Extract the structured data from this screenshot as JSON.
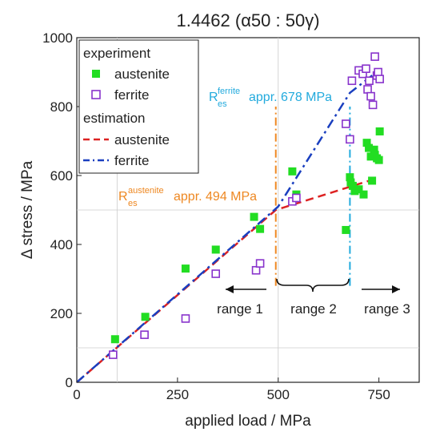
{
  "chart_data": {
    "type": "scatter",
    "title": "1.4462 (α50 : 50γ)",
    "xlabel": "applied load / MPa",
    "ylabel": "Δ stress / MPa",
    "xlim": [
      0,
      850
    ],
    "ylim": [
      0,
      1000
    ],
    "x_ticks": [
      "0",
      "250",
      "500",
      "750"
    ],
    "x_tick_values": [
      0,
      250,
      500,
      750
    ],
    "y_ticks": [
      "0",
      "200",
      "400",
      "600",
      "800",
      "1000"
    ],
    "y_tick_values": [
      0,
      200,
      400,
      600,
      800,
      1000
    ],
    "grid_x": [
      100,
      500
    ],
    "grid_y": [
      100,
      500
    ],
    "legend": {
      "position": "top-left",
      "group1": "experiment",
      "group2": "estimation",
      "entries": [
        "austenite",
        "ferrite",
        "austenite",
        "ferrite"
      ]
    },
    "series": [
      {
        "name": "austenite",
        "kind": "experiment",
        "marker": "filled-square",
        "color": "#22dd22",
        "x": [
          95,
          170,
          270,
          345,
          440,
          455,
          535,
          545,
          668,
          678,
          680,
          685,
          690,
          700,
          712,
          720,
          725,
          730,
          733,
          738,
          740,
          745,
          750,
          752
        ],
        "y": [
          125,
          190,
          330,
          385,
          480,
          445,
          612,
          545,
          442,
          595,
          580,
          570,
          555,
          560,
          545,
          695,
          680,
          655,
          585,
          675,
          660,
          650,
          645,
          728
        ]
      },
      {
        "name": "ferrite",
        "kind": "experiment",
        "marker": "open-square",
        "color": "#8833cc",
        "x": [
          90,
          168,
          270,
          345,
          445,
          455,
          535,
          545,
          668,
          678,
          683,
          700,
          710,
          718,
          722,
          726,
          730,
          735,
          740,
          745,
          748,
          752
        ],
        "y": [
          80,
          138,
          185,
          315,
          325,
          345,
          525,
          535,
          750,
          705,
          875,
          905,
          895,
          910,
          850,
          875,
          830,
          805,
          945,
          890,
          900,
          880
        ]
      },
      {
        "name": "austenite",
        "kind": "estimation",
        "line": "dashed",
        "color": "#dd2222",
        "x": [
          0,
          494,
          740
        ],
        "y": [
          0,
          500,
          590
        ]
      },
      {
        "name": "ferrite",
        "kind": "estimation",
        "line": "dash-dot",
        "color": "#1a3fbf",
        "x": [
          0,
          500,
          678,
          755
        ],
        "y": [
          0,
          510,
          840,
          910
        ]
      }
    ],
    "vertical_lines": [
      {
        "x": 494,
        "y_range": [
          280,
          800
        ],
        "color": "#ee8822"
      },
      {
        "x": 678,
        "y_range": [
          280,
          800
        ],
        "color": "#22aadd"
      }
    ],
    "annotations": {
      "ferrite_symbol": "R",
      "ferrite_sub": "es",
      "ferrite_sup": "ferrite",
      "ferrite_text": "appr. 678 MPa",
      "ferrite_color": "#22aadd",
      "austenite_symbol": "R",
      "austenite_sub": "es",
      "austenite_sup": "austenite",
      "austenite_text": "appr. 494 MPa",
      "austenite_color": "#ee8822",
      "range1": "range 1",
      "range2": "range 2",
      "range3": "range 3"
    }
  }
}
